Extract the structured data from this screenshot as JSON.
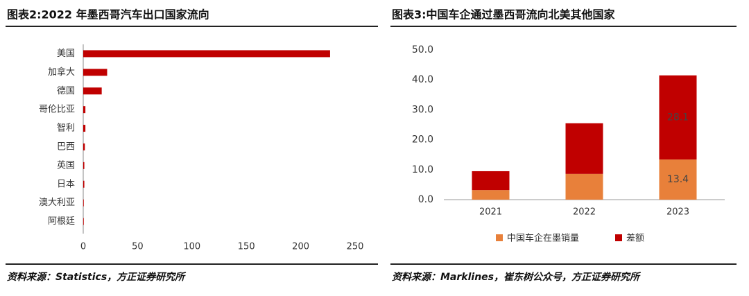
{
  "chart_data": [
    {
      "type": "hbar",
      "title": "图表2:2022 年墨西哥汽车出口国家流向",
      "source": "资料来源：Statistics，方正证券研究所",
      "categories": [
        "美国",
        "加拿大",
        "德国",
        "哥伦比亚",
        "智利",
        "巴西",
        "英国",
        "日本",
        "澳大利亚",
        "阿根廷"
      ],
      "values": [
        227,
        22,
        17,
        2,
        2,
        1.5,
        1,
        1,
        0.5,
        0.5
      ],
      "color": "#c00000",
      "xlim": [
        0,
        250
      ],
      "xticks": [
        0,
        50,
        100,
        150,
        200,
        250
      ]
    },
    {
      "type": "stacked_bar",
      "title": "图表3:中国车企通过墨西哥流向北美其他国家",
      "source": "资料来源：Marklines，崔东树公众号，方正证券研究所",
      "categories": [
        "2021",
        "2022",
        "2023"
      ],
      "series": [
        {
          "name": "中国车企在墨销量",
          "color": "#e8803a",
          "values": [
            3.2,
            8.6,
            13.4
          ],
          "value_labels": [
            null,
            null,
            "13.4"
          ]
        },
        {
          "name": "差额",
          "color": "#c00000",
          "values": [
            6.3,
            16.9,
            28.1
          ],
          "value_labels": [
            null,
            null,
            "28.1"
          ]
        }
      ],
      "ylim": [
        0,
        50
      ],
      "yticks": [
        {
          "value": 0,
          "label": "0.0"
        },
        {
          "value": 10,
          "label": "10.0"
        },
        {
          "value": 20,
          "label": "20.0"
        },
        {
          "value": 30,
          "label": "30.0"
        },
        {
          "value": 40,
          "label": "40.0"
        },
        {
          "value": 50,
          "label": "50.0"
        }
      ],
      "legend": "bottom"
    }
  ]
}
